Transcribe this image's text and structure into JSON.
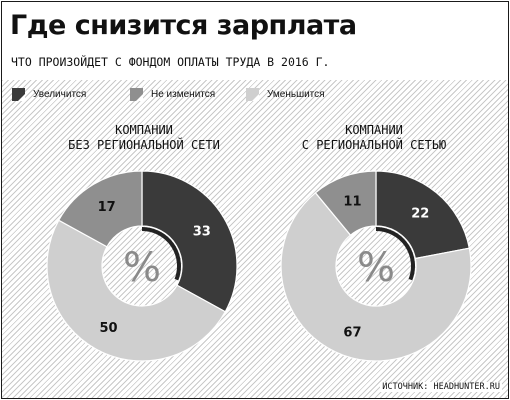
{
  "header": {
    "title": "Где снизится зарплата",
    "subtitle": "ЧТО ПРОИЗОЙДЕТ С ФОНДОМ ОПЛАТЫ ТРУДА В 2016 Г."
  },
  "source": "ИСТОЧНИК: HEADHUNTER.RU",
  "colors": {
    "increase": "#3a3a3a",
    "unchanged": "#8f8f8f",
    "decrease": "#cfcfcf"
  },
  "chart_data": [
    {
      "type": "pie",
      "title_lines": [
        "КОМПАНИИ",
        "БЕЗ РЕГИОНАЛЬНОЙ СЕТИ"
      ],
      "center_label": "%",
      "legend": [
        "Увеличится",
        "Не изменится",
        "Уменьшится"
      ],
      "slices": [
        {
          "label": "Увеличится",
          "value": 33
        },
        {
          "label": "Уменьшится",
          "value": 50
        },
        {
          "label": "Не изменится",
          "value": 17
        }
      ],
      "legend_position": "top"
    },
    {
      "type": "pie",
      "title_lines": [
        "КОМПАНИИ",
        "С РЕГИОНАЛЬНОЙ СЕТЬЮ"
      ],
      "center_label": "%",
      "legend": [
        "Увеличится",
        "Не изменится",
        "Уменьшится"
      ],
      "slices": [
        {
          "label": "Увеличится",
          "value": 22
        },
        {
          "label": "Уменьшится",
          "value": 67
        },
        {
          "label": "Не изменится",
          "value": 11
        }
      ],
      "legend_position": "top"
    }
  ]
}
